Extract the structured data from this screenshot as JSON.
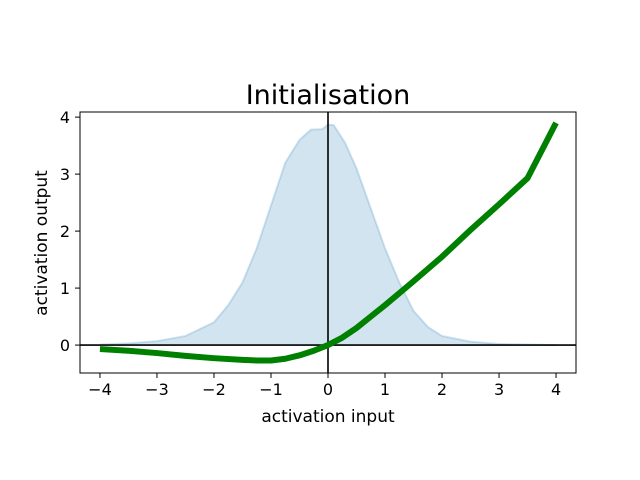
{
  "chart_data": {
    "type": "line",
    "title": "Initialisation",
    "xlabel": "activation input",
    "ylabel": "activation output",
    "xlim": [
      -4.35,
      4.35
    ],
    "ylim": [
      -0.49,
      4.09
    ],
    "xticks": [
      -4,
      -3,
      -2,
      -1,
      0,
      1,
      2,
      3,
      4
    ],
    "xtick_labels": [
      "−4",
      "−3",
      "−2",
      "−1",
      "0",
      "1",
      "2",
      "3",
      "4"
    ],
    "yticks": [
      0,
      1,
      2,
      3,
      4
    ],
    "ytick_labels": [
      "0",
      "1",
      "2",
      "3",
      "4"
    ],
    "grid": false,
    "reference_lines": {
      "x": 0,
      "y": 0
    },
    "series": [
      {
        "kind": "line",
        "color": "#008000",
        "x": [
          -4.0,
          -3.5,
          -3.0,
          -2.5,
          -2.0,
          -1.5,
          -1.25,
          -1.0,
          -0.75,
          -0.5,
          -0.25,
          0.0,
          0.25,
          0.5,
          0.75,
          1.0,
          1.5,
          2.0,
          2.5,
          3.0,
          3.5,
          4.0
        ],
        "y": [
          -0.07,
          -0.1,
          -0.14,
          -0.19,
          -0.23,
          -0.26,
          -0.27,
          -0.27,
          -0.24,
          -0.18,
          -0.1,
          0.0,
          0.13,
          0.3,
          0.5,
          0.7,
          1.12,
          1.55,
          2.02,
          2.47,
          2.93,
          3.9
        ]
      },
      {
        "kind": "area",
        "color": "#1f77b4",
        "x": [
          -4.0,
          -3.5,
          -3.0,
          -2.5,
          -2.0,
          -1.75,
          -1.5,
          -1.25,
          -1.0,
          -0.75,
          -0.5,
          -0.3,
          -0.1,
          0.0,
          0.1,
          0.3,
          0.5,
          0.75,
          1.0,
          1.25,
          1.5,
          1.75,
          2.0,
          2.5,
          3.0,
          3.5,
          4.0
        ],
        "y": [
          0.01,
          0.03,
          0.07,
          0.16,
          0.4,
          0.7,
          1.1,
          1.7,
          2.45,
          3.2,
          3.6,
          3.78,
          3.79,
          3.87,
          3.86,
          3.55,
          3.1,
          2.4,
          1.7,
          1.1,
          0.6,
          0.32,
          0.16,
          0.06,
          0.02,
          0.01,
          0.0
        ]
      }
    ]
  }
}
